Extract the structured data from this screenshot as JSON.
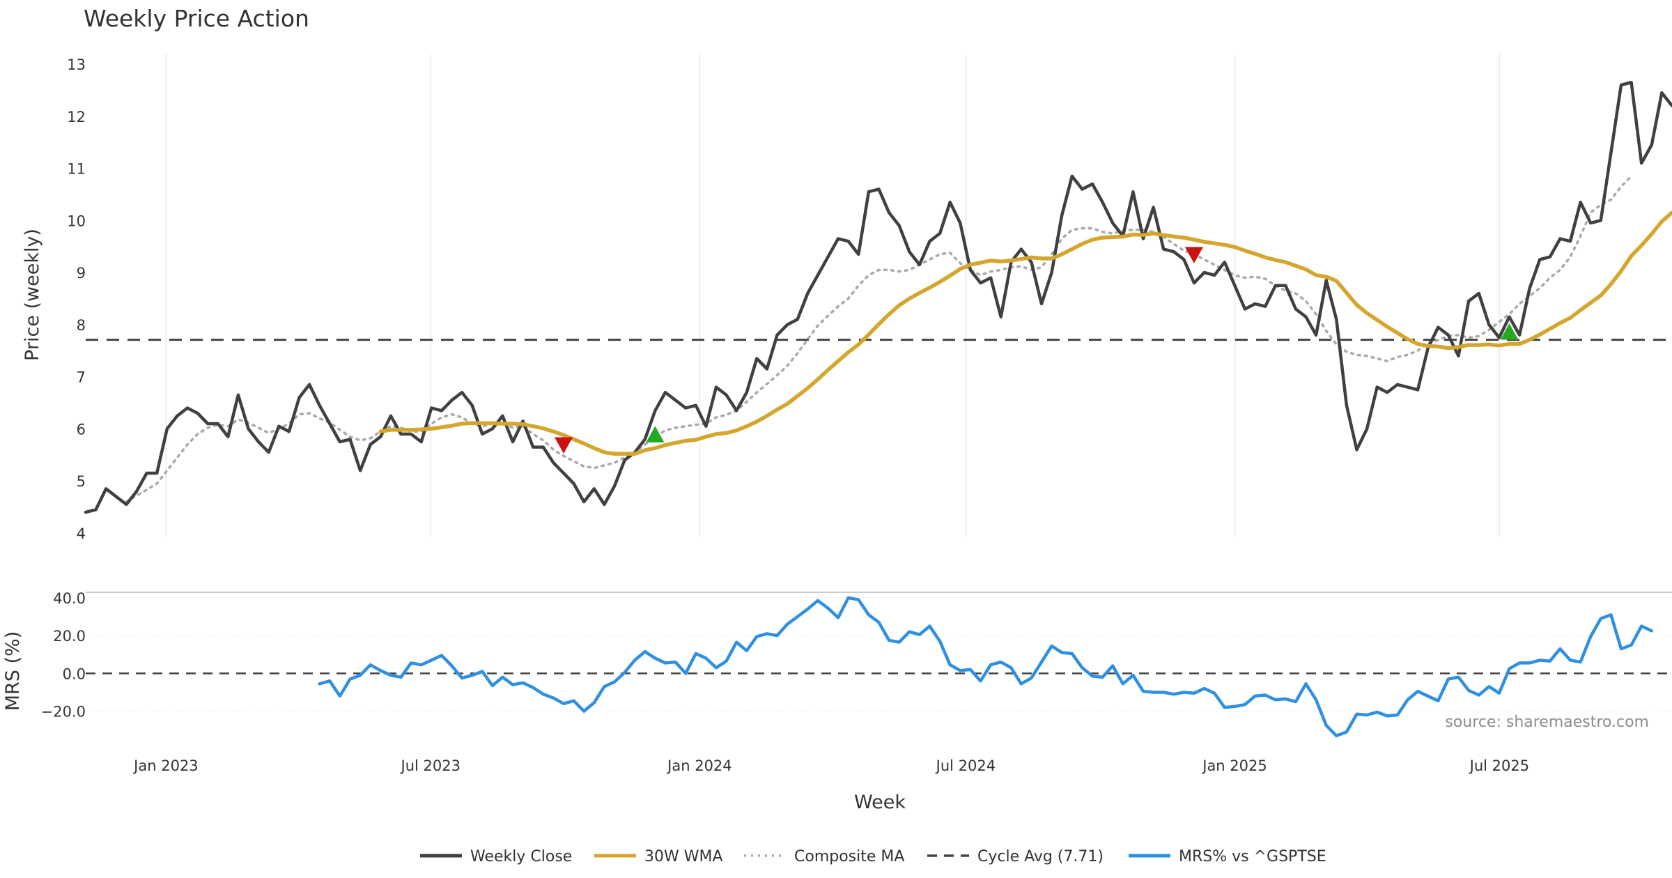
{
  "chart_data": [
    {
      "type": "line",
      "title": "Weekly Price Action",
      "ylabel": "Price (weekly)",
      "ylim": [
        4,
        13
      ],
      "yticks": [
        4,
        5,
        6,
        7,
        8,
        9,
        10,
        11,
        12,
        13
      ],
      "x_start": "2022-11-07",
      "x_end": "2025-10-27",
      "series": [
        {
          "name": "Weekly Close",
          "color": "#404040",
          "style": "solid",
          "values": [
            4.4,
            4.45,
            4.85,
            4.7,
            4.55,
            4.8,
            5.15,
            5.15,
            6.0,
            6.25,
            6.4,
            6.3,
            6.1,
            6.1,
            5.85,
            6.65,
            6.0,
            5.75,
            5.55,
            6.05,
            5.95,
            6.6,
            6.85,
            6.45,
            6.1,
            5.75,
            5.8,
            5.2,
            5.7,
            5.85,
            6.25,
            5.9,
            5.9,
            5.75,
            6.4,
            6.35,
            6.55,
            6.7,
            6.45,
            5.9,
            6.0,
            6.25,
            5.75,
            6.15,
            5.65,
            5.65,
            5.35,
            5.15,
            4.95,
            4.6,
            4.85,
            4.55,
            4.9,
            5.4,
            5.55,
            5.8,
            6.35,
            6.7,
            6.55,
            6.4,
            6.45,
            6.05,
            6.8,
            6.65,
            6.35,
            6.7,
            7.35,
            7.15,
            7.8,
            8.0,
            8.1,
            8.6,
            8.95,
            9.3,
            9.65,
            9.6,
            9.35,
            10.55,
            10.6,
            10.15,
            9.9,
            9.4,
            9.15,
            9.6,
            9.75,
            10.35,
            9.95,
            9.05,
            8.8,
            8.9,
            8.15,
            9.2,
            9.45,
            9.2,
            8.4,
            9.0,
            10.1,
            10.85,
            10.6,
            10.7,
            10.35,
            9.95,
            9.7,
            10.55,
            9.65,
            10.25,
            9.45,
            9.4,
            9.25,
            8.8,
            9.0,
            8.95,
            9.2,
            8.75,
            8.3,
            8.4,
            8.35,
            8.75,
            8.75,
            8.3,
            8.15,
            7.8,
            8.85,
            8.1,
            6.45,
            5.6,
            6.0,
            6.8,
            6.7,
            6.85,
            6.8,
            6.75,
            7.55,
            7.95,
            7.8,
            7.4,
            8.45,
            8.6,
            8.0,
            7.75,
            8.15,
            7.8,
            8.7,
            9.25,
            9.3,
            9.65,
            9.6,
            10.35,
            9.95,
            10.0,
            11.3,
            12.6,
            12.65,
            11.1,
            11.45,
            12.45,
            12.2
          ]
        },
        {
          "name": "30W WMA",
          "color": "#d4a62e",
          "style": "solid",
          "values": [
            null,
            null,
            null,
            null,
            null,
            null,
            null,
            null,
            null,
            null,
            null,
            null,
            null,
            null,
            null,
            null,
            null,
            null,
            null,
            null,
            null,
            null,
            null,
            null,
            null,
            null,
            null,
            null,
            null,
            5.95,
            5.98,
            5.98,
            5.98,
            5.99,
            6.0,
            6.03,
            6.06,
            6.1,
            6.11,
            6.11,
            6.11,
            6.1,
            6.1,
            6.09,
            6.05,
            6.01,
            5.95,
            5.88,
            5.8,
            5.72,
            5.63,
            5.55,
            5.52,
            5.52,
            5.52,
            5.59,
            5.63,
            5.69,
            5.73,
            5.77,
            5.79,
            5.85,
            5.9,
            5.92,
            5.97,
            6.05,
            6.14,
            6.25,
            6.37,
            6.48,
            6.63,
            6.78,
            6.95,
            7.13,
            7.3,
            7.47,
            7.62,
            7.81,
            8.01,
            8.2,
            8.37,
            8.5,
            8.61,
            8.71,
            8.82,
            8.94,
            9.07,
            9.15,
            9.19,
            9.23,
            9.21,
            9.23,
            9.26,
            9.29,
            9.27,
            9.27,
            9.35,
            9.45,
            9.55,
            9.63,
            9.67,
            9.68,
            9.69,
            9.73,
            9.72,
            9.75,
            9.72,
            9.69,
            9.67,
            9.63,
            9.59,
            9.56,
            9.53,
            9.49,
            9.42,
            9.36,
            9.29,
            9.24,
            9.2,
            9.13,
            9.06,
            8.95,
            8.92,
            8.84,
            8.61,
            8.38,
            8.22,
            8.09,
            7.96,
            7.84,
            7.72,
            7.63,
            7.59,
            7.58,
            7.55,
            7.57,
            7.61,
            7.61,
            7.62,
            7.6,
            7.63,
            7.63,
            7.71,
            7.81,
            7.92,
            8.03,
            8.13,
            8.28,
            8.42,
            8.56,
            8.78,
            9.03,
            9.32,
            9.52,
            9.74,
            9.98,
            10.15
          ]
        },
        {
          "name": "Composite MA",
          "color": "#aaaaaa",
          "style": "dotted",
          "values": [
            null,
            null,
            null,
            null,
            4.6,
            4.72,
            4.83,
            4.95,
            5.2,
            5.45,
            5.7,
            5.9,
            6.02,
            6.08,
            6.05,
            6.18,
            6.12,
            6.02,
            5.92,
            6.0,
            6.1,
            6.28,
            6.3,
            6.2,
            6.12,
            5.98,
            5.85,
            5.78,
            5.82,
            5.95,
            6.05,
            6.02,
            5.95,
            5.95,
            6.1,
            6.22,
            6.28,
            6.22,
            6.1,
            6.05,
            6.1,
            6.12,
            6.02,
            6.05,
            5.9,
            5.78,
            5.6,
            5.48,
            5.38,
            5.28,
            5.25,
            5.3,
            5.35,
            5.45,
            5.55,
            5.7,
            5.85,
            5.97,
            6.02,
            6.05,
            6.08,
            6.1,
            6.22,
            6.27,
            6.35,
            6.52,
            6.7,
            6.86,
            7.03,
            7.21,
            7.45,
            7.72,
            7.98,
            8.17,
            8.35,
            8.5,
            8.75,
            8.95,
            9.05,
            9.05,
            9.02,
            9.05,
            9.15,
            9.25,
            9.35,
            9.38,
            9.18,
            9.05,
            8.95,
            9.02,
            9.05,
            9.1,
            9.12,
            9.05,
            9.1,
            9.35,
            9.65,
            9.82,
            9.85,
            9.85,
            9.78,
            9.75,
            9.8,
            9.82,
            9.82,
            9.78,
            9.68,
            9.55,
            9.42,
            9.35,
            9.25,
            9.15,
            9.05,
            8.95,
            8.9,
            8.92,
            8.88,
            8.75,
            8.65,
            8.6,
            8.45,
            8.2,
            7.88,
            7.62,
            7.48,
            7.42,
            7.4,
            7.35,
            7.3,
            7.38,
            7.42,
            7.5,
            7.65,
            7.7,
            7.78,
            7.8,
            7.75,
            7.78,
            7.9,
            8.05,
            8.2,
            8.4,
            8.55,
            8.7,
            8.9,
            9.05,
            9.3,
            9.7,
            10.15,
            10.3,
            10.4,
            10.65,
            10.85
          ]
        }
      ],
      "reference_line": {
        "name": "Cycle Avg (7.71)",
        "value": 7.71,
        "color": "#444444",
        "style": "dashed"
      },
      "markers": [
        {
          "type": "sell",
          "week": 47,
          "value": 5.7,
          "color": "#cc1111"
        },
        {
          "type": "buy",
          "week": 56,
          "value": 5.88,
          "color": "#22aa22"
        },
        {
          "type": "sell",
          "week": 109,
          "value": 9.35,
          "color": "#cc1111"
        },
        {
          "type": "buy",
          "week": 140,
          "value": 7.85,
          "color": "#22aa22"
        }
      ]
    },
    {
      "type": "line",
      "ylabel": "MRS (%)",
      "xlabel": "Week",
      "ylim": [
        -36,
        44
      ],
      "yticks": [
        -20.0,
        0.0,
        20.0,
        40.0
      ],
      "ytick_labels": [
        "−20.0",
        "0.0",
        "20.0",
        "40.0"
      ],
      "xticks": [
        {
          "label": "Jan 2023",
          "date": "2023-01-01"
        },
        {
          "label": "Jul 2023",
          "date": "2023-07-01"
        },
        {
          "label": "Jan 2024",
          "date": "2024-01-01"
        },
        {
          "label": "Jul 2024",
          "date": "2024-07-01"
        },
        {
          "label": "Jan 2025",
          "date": "2025-01-01"
        },
        {
          "label": "Jul 2025",
          "date": "2025-07-01"
        }
      ],
      "series": [
        {
          "name": "MRS% vs ^GSPTSE",
          "color": "#2f8fe0",
          "style": "solid",
          "values": [
            null,
            null,
            null,
            null,
            null,
            null,
            null,
            null,
            null,
            null,
            null,
            null,
            null,
            null,
            null,
            null,
            null,
            null,
            null,
            null,
            null,
            null,
            null,
            -5.5,
            -4,
            -12,
            -3,
            -1,
            4.5,
            1.5,
            -1,
            -2,
            5.5,
            4.5,
            7,
            9.5,
            4,
            -2.5,
            -1,
            1,
            -6.5,
            -2,
            -6,
            -5,
            -7.5,
            -11,
            -13,
            -16,
            -14.5,
            -20,
            -15.5,
            -7,
            -4.5,
            0.5,
            7,
            11.5,
            8,
            5.5,
            6,
            0,
            10.5,
            8,
            3,
            6.5,
            16.5,
            12,
            19.5,
            21,
            20,
            26,
            30,
            34,
            38.5,
            34.5,
            29.5,
            40,
            39,
            31,
            27,
            17.5,
            16.5,
            22,
            20.5,
            25,
            17,
            4.5,
            1.5,
            2,
            -4,
            4.5,
            6,
            3,
            -5.5,
            -2.5,
            6,
            14.5,
            11,
            10.5,
            3,
            -1.5,
            -2,
            4,
            -5.5,
            -1,
            -9.5,
            -10,
            -10,
            -11,
            -10,
            -10.5,
            -8,
            -10.5,
            -18,
            -17.5,
            -16.5,
            -12,
            -11.5,
            -14,
            -13.5,
            -15,
            -5.5,
            -14,
            -27.5,
            -33,
            -31,
            -21.5,
            -22,
            -20.5,
            -22.5,
            -22,
            -14,
            -9.5,
            -12,
            -14.5,
            -3,
            -2,
            -9,
            -11.5,
            -7,
            -10.5,
            2.5,
            5.5,
            5.5,
            7,
            6.5,
            13,
            7,
            6,
            19.5,
            29,
            31,
            13,
            15,
            25,
            22.5
          ]
        }
      ],
      "reference_line": {
        "value": 0,
        "color": "#444444",
        "style": "dashed"
      }
    }
  ],
  "source": "source: sharemaestro.com",
  "legend": [
    {
      "label": "Weekly Close",
      "color": "#404040",
      "style": "solid"
    },
    {
      "label": "30W WMA",
      "color": "#d4a62e",
      "style": "solid"
    },
    {
      "label": "Composite MA",
      "color": "#aaaaaa",
      "style": "dotted"
    },
    {
      "label": "Cycle Avg (7.71)",
      "color": "#444444",
      "style": "dashed"
    },
    {
      "label": "MRS% vs ^GSPTSE",
      "color": "#2f8fe0",
      "style": "solid"
    }
  ]
}
